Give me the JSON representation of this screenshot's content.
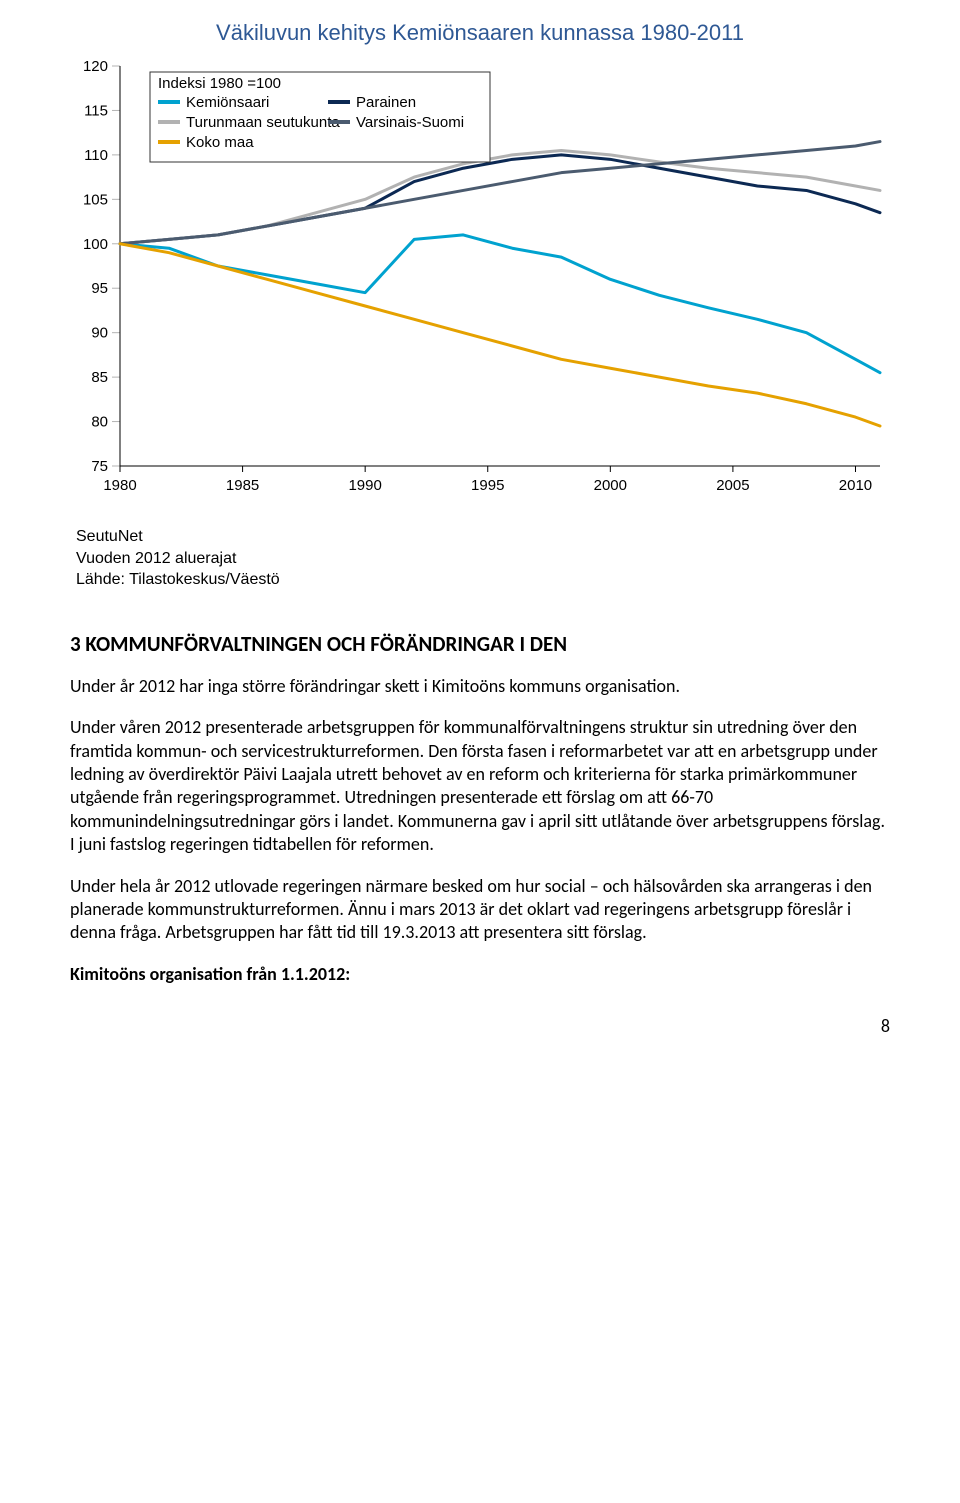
{
  "chart": {
    "type": "line",
    "title": "Väkiluvun kehitys Kemiönsaaren kunnassa 1980-2011",
    "title_color": "#2e5894",
    "title_fontsize": 22,
    "background_color": "#ffffff",
    "grid_color": "#b3b3b3",
    "axis_color": "#000000",
    "axis_fontsize": 15,
    "x_ticks": [
      1980,
      1985,
      1990,
      1995,
      2000,
      2005,
      2010
    ],
    "xlim": [
      1980,
      2011
    ],
    "y_ticks": [
      75,
      80,
      85,
      90,
      95,
      100,
      105,
      110,
      115,
      120
    ],
    "ylim": [
      75,
      120
    ],
    "line_width": 3,
    "legend": {
      "box_stroke": "#333333",
      "box_fill": "#ffffff",
      "header": "Indeksi 1980 =100",
      "items": [
        {
          "label": "Kemiönsaari",
          "color": "#00a2cf"
        },
        {
          "label": "Parainen",
          "color": "#0c2953"
        },
        {
          "label": "Turunmaan seutukunta",
          "color": "#b2b2b2"
        },
        {
          "label": "Varsinais-Suomi",
          "color": "#4b5b6f"
        },
        {
          "label": "Koko maa",
          "color": "#e5a100"
        }
      ]
    },
    "series": [
      {
        "name": "Kemiönsaari",
        "color": "#00a2cf",
        "points": [
          [
            1980,
            100
          ],
          [
            1982,
            99.5
          ],
          [
            1984,
            97.5
          ],
          [
            1986,
            96.5
          ],
          [
            1988,
            95.5
          ],
          [
            1990,
            94.5
          ],
          [
            1992,
            100.5
          ],
          [
            1994,
            101
          ],
          [
            1996,
            99.5
          ],
          [
            1998,
            98.5
          ],
          [
            2000,
            96
          ],
          [
            2002,
            94.2
          ],
          [
            2004,
            92.8
          ],
          [
            2006,
            91.5
          ],
          [
            2008,
            90
          ],
          [
            2010,
            87
          ],
          [
            2011,
            85.5
          ]
        ]
      },
      {
        "name": "Parainen",
        "color": "#0c2953",
        "points": [
          [
            1980,
            100
          ],
          [
            1982,
            100.5
          ],
          [
            1984,
            101
          ],
          [
            1986,
            102
          ],
          [
            1988,
            103
          ],
          [
            1990,
            104
          ],
          [
            1992,
            107
          ],
          [
            1994,
            108.5
          ],
          [
            1996,
            109.5
          ],
          [
            1998,
            110
          ],
          [
            2000,
            109.5
          ],
          [
            2002,
            108.5
          ],
          [
            2004,
            107.5
          ],
          [
            2006,
            106.5
          ],
          [
            2008,
            106
          ],
          [
            2010,
            104.5
          ],
          [
            2011,
            103.5
          ]
        ]
      },
      {
        "name": "Turunmaan seutukunta",
        "color": "#b2b2b2",
        "points": [
          [
            1980,
            100
          ],
          [
            1982,
            100.5
          ],
          [
            1984,
            101
          ],
          [
            1986,
            102
          ],
          [
            1988,
            103.5
          ],
          [
            1990,
            105
          ],
          [
            1992,
            107.5
          ],
          [
            1994,
            109
          ],
          [
            1996,
            110
          ],
          [
            1998,
            110.5
          ],
          [
            2000,
            110
          ],
          [
            2002,
            109.2
          ],
          [
            2004,
            108.5
          ],
          [
            2006,
            108
          ],
          [
            2008,
            107.5
          ],
          [
            2010,
            106.5
          ],
          [
            2011,
            106
          ]
        ]
      },
      {
        "name": "Varsinais-Suomi",
        "color": "#4b5b6f",
        "points": [
          [
            1980,
            100
          ],
          [
            1982,
            100.5
          ],
          [
            1984,
            101
          ],
          [
            1986,
            102
          ],
          [
            1988,
            103
          ],
          [
            1990,
            104
          ],
          [
            1992,
            105
          ],
          [
            1994,
            106
          ],
          [
            1996,
            107
          ],
          [
            1998,
            108
          ],
          [
            2000,
            108.5
          ],
          [
            2002,
            109
          ],
          [
            2004,
            109.5
          ],
          [
            2006,
            110
          ],
          [
            2008,
            110.5
          ],
          [
            2010,
            111
          ],
          [
            2011,
            111.5
          ]
        ]
      },
      {
        "name": "Koko maa",
        "color": "#e5a100",
        "points": [
          [
            1980,
            100
          ],
          [
            1982,
            99
          ],
          [
            1984,
            97.5
          ],
          [
            1986,
            96
          ],
          [
            1988,
            94.5
          ],
          [
            1990,
            93
          ],
          [
            1992,
            91.5
          ],
          [
            1994,
            90
          ],
          [
            1996,
            88.5
          ],
          [
            1998,
            87
          ],
          [
            2000,
            86
          ],
          [
            2002,
            85
          ],
          [
            2004,
            84
          ],
          [
            2006,
            83.2
          ],
          [
            2008,
            82
          ],
          [
            2010,
            80.5
          ],
          [
            2011,
            79.5
          ]
        ]
      }
    ]
  },
  "source": {
    "line1": "SeutuNet",
    "line2": "Vuoden 2012 aluerajat",
    "line3": "Lähde: Tilastokeskus/Väestö"
  },
  "section_heading": "3 KOMMUNFÖRVALTNINGEN OCH FÖRÄNDRINGAR I DEN",
  "para1": "Under år 2012 har inga större förändringar skett i Kimitoöns kommuns organisation.",
  "para2": "Under våren 2012 presenterade arbetsgruppen för kommunalförvaltningens struktur sin utredning över den framtida kommun- och servicestrukturreformen. Den första fasen i reformarbetet var att en arbetsgrupp under ledning av överdirektör Päivi Laajala utrett behovet av en reform och kriterierna för starka primärkommuner utgående från regeringsprogrammet. Utredningen presenterade ett förslag om att 66-70 kommunindelningsutredningar görs i landet. Kommunerna gav i april sitt utlåtande över arbetsgruppens förslag. I juni fastslog regeringen tidtabellen för reformen.",
  "para3": "Under hela år 2012 utlovade regeringen närmare besked om hur social – och hälsovården ska arrangeras i den planerade kommunstrukturreformen. Ännu i mars 2013 är det oklart vad regeringens arbetsgrupp föreslår i denna fråga. Arbetsgruppen har fått tid till 19.3.2013 att presentera sitt förslag.",
  "subheading": "Kimitoöns organisation från 1.1.2012:",
  "page_number": "8"
}
